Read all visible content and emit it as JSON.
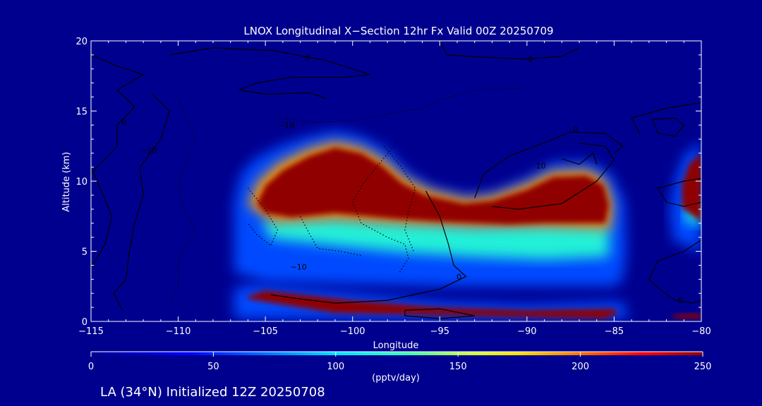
{
  "chart_data": {
    "type": "heatmap",
    "title": "LNOX Longitudinal X−Section 12hr  Fx Valid 00Z 20250709",
    "xlabel": "Longitude",
    "ylabel": "Altitude (km)",
    "xlim": [
      -115,
      -80
    ],
    "ylim": [
      0,
      20
    ],
    "xticks": [
      -115,
      -110,
      -105,
      -100,
      -95,
      -90,
      -85,
      -80
    ],
    "xtick_labels": [
      "−115",
      "−110",
      "−105",
      "−100",
      "−95",
      "−90",
      "−85",
      "−80"
    ],
    "yticks": [
      0,
      5,
      10,
      15,
      20
    ],
    "ytick_labels": [
      "0",
      "5",
      "10",
      "15",
      "20"
    ],
    "background_color": "#00008f",
    "colorbar": {
      "label": "(pptv/day)",
      "min": 0,
      "max": 250,
      "ticks": [
        0,
        50,
        100,
        150,
        200,
        250
      ],
      "tick_labels": [
        "0",
        "50",
        "100",
        "150",
        "200",
        "250"
      ],
      "colormap": "rainbow (blue → cyan → green → yellow → red → dark red)"
    },
    "filled_regions": [
      {
        "value": 60,
        "polygon": [
          [
            -106.8,
            8.5
          ],
          [
            -106.4,
            10.5
          ],
          [
            -105.5,
            11.7
          ],
          [
            -104,
            12.6
          ],
          [
            -102.5,
            13.2
          ],
          [
            -101,
            13.6
          ],
          [
            -99.5,
            13.2
          ],
          [
            -98,
            12.2
          ],
          [
            -96.8,
            10.6
          ],
          [
            -95.5,
            9.6
          ],
          [
            -93.5,
            9.0
          ],
          [
            -92,
            9.2
          ],
          [
            -90,
            10.2
          ],
          [
            -88.5,
            11.3
          ],
          [
            -86.5,
            11.4
          ],
          [
            -85.2,
            10.5
          ],
          [
            -84.4,
            8.5
          ],
          [
            -84.3,
            5
          ],
          [
            -84.5,
            3
          ],
          [
            -85,
            2.5
          ],
          [
            -95,
            2.5
          ],
          [
            -105,
            2.8
          ],
          [
            -106.8,
            3.5
          ]
        ]
      },
      {
        "value": 115,
        "polygon": [
          [
            -105.2,
            7.2
          ],
          [
            -101,
            7.4
          ],
          [
            -97,
            7.1
          ],
          [
            -93,
            6.8
          ],
          [
            -89,
            6.9
          ],
          [
            -85.3,
            6.8
          ],
          [
            -85.3,
            4.6
          ],
          [
            -89,
            4.4
          ],
          [
            -93,
            4.6
          ],
          [
            -97,
            4.9
          ],
          [
            -101,
            5.4
          ],
          [
            -104.7,
            5.9
          ]
        ]
      },
      {
        "value": 190,
        "polygon": [
          [
            -106,
            8.3
          ],
          [
            -105.4,
            10
          ],
          [
            -104.2,
            11.3
          ],
          [
            -102.5,
            12.3
          ],
          [
            -101,
            12.8
          ],
          [
            -99.5,
            12.4
          ],
          [
            -98.2,
            11.5
          ],
          [
            -97,
            10.2
          ],
          [
            -95.5,
            9.3
          ],
          [
            -93.5,
            8.7
          ],
          [
            -92,
            8.9
          ],
          [
            -90,
            9.8
          ],
          [
            -88.5,
            10.7
          ],
          [
            -86.5,
            10.8
          ],
          [
            -85.5,
            10
          ],
          [
            -85.1,
            8.4
          ],
          [
            -85.2,
            6.6
          ],
          [
            -89,
            6.8
          ],
          [
            -93,
            6.8
          ],
          [
            -97,
            7.0
          ],
          [
            -101,
            7.3
          ],
          [
            -104.5,
            7.1
          ]
        ]
      },
      {
        "value": 250,
        "polygon": [
          [
            -105.5,
            8.4
          ],
          [
            -105,
            9.7
          ],
          [
            -104,
            10.8
          ],
          [
            -102.5,
            11.8
          ],
          [
            -101,
            12.4
          ],
          [
            -99.5,
            12.0
          ],
          [
            -98.3,
            11.1
          ],
          [
            -97.2,
            9.9
          ],
          [
            -95.8,
            9.0
          ],
          [
            -93.6,
            8.4
          ],
          [
            -92,
            8.6
          ],
          [
            -90,
            9.4
          ],
          [
            -88.5,
            10.3
          ],
          [
            -86.6,
            10.4
          ],
          [
            -85.6,
            9.7
          ],
          [
            -85.3,
            8.3
          ],
          [
            -85.5,
            7.0
          ],
          [
            -89,
            7.0
          ],
          [
            -91,
            6.9
          ],
          [
            -95,
            7.1
          ],
          [
            -97.5,
            7.3
          ],
          [
            -101,
            7.7
          ],
          [
            -103.5,
            7.4
          ],
          [
            -105,
            7.7
          ]
        ]
      },
      {
        "value": 60,
        "polygon": [
          [
            -106.8,
            2.4
          ],
          [
            -105.5,
            2.6
          ],
          [
            -100,
            2.0
          ],
          [
            -95,
            1.4
          ],
          [
            -90,
            1.2
          ],
          [
            -84.5,
            1.4
          ],
          [
            -84.2,
            0.2
          ],
          [
            -106.8,
            0.2
          ]
        ]
      },
      {
        "value": 250,
        "polygon": [
          [
            -106,
            1.8
          ],
          [
            -105,
            2.2
          ],
          [
            -100,
            1.5
          ],
          [
            -95,
            1.0
          ],
          [
            -90,
            0.8
          ],
          [
            -85,
            0.9
          ],
          [
            -84.8,
            0.6
          ],
          [
            -85.5,
            0.2
          ],
          [
            -101,
            0.6
          ],
          [
            -106,
            1.6
          ]
        ]
      },
      {
        "value": 60,
        "polygon": [
          [
            -80,
            12.8
          ],
          [
            -81,
            11.8
          ],
          [
            -81.5,
            10
          ],
          [
            -81.8,
            8
          ],
          [
            -81.6,
            5.8
          ],
          [
            -80,
            5.0
          ]
        ]
      },
      {
        "value": 110,
        "polygon": [
          [
            -80,
            6.8
          ],
          [
            -80.9,
            7.1
          ],
          [
            -81,
            8
          ],
          [
            -80,
            8.5
          ]
        ]
      },
      {
        "value": 250,
        "polygon": [
          [
            -80,
            12.0
          ],
          [
            -80.7,
            11.2
          ],
          [
            -81.1,
            9.8
          ],
          [
            -81.1,
            8.1
          ],
          [
            -80,
            7.1
          ]
        ]
      },
      {
        "value": 250,
        "polygon": [
          [
            -80,
            0.6
          ],
          [
            -81.6,
            0.5
          ],
          [
            -81.6,
            0.2
          ],
          [
            -80,
            0.2
          ]
        ]
      }
    ],
    "contour_labels": [
      {
        "text": "0",
        "x": -102.6,
        "y": 18.8
      },
      {
        "text": "0",
        "x": -89.8,
        "y": 18.7
      },
      {
        "text": "0",
        "x": -113.1,
        "y": 14.2
      },
      {
        "text": "−10",
        "x": -111.7,
        "y": 12.2
      },
      {
        "text": "−10",
        "x": -103.8,
        "y": 14.0
      },
      {
        "text": "0",
        "x": -87.2,
        "y": 13.7
      },
      {
        "text": "10",
        "x": -89.2,
        "y": 11.1
      },
      {
        "text": "−10",
        "x": -103.1,
        "y": 3.9
      },
      {
        "text": "0",
        "x": -93.9,
        "y": 3.2
      },
      {
        "text": "0",
        "x": -81.2,
        "y": 1.5
      }
    ],
    "solid_contours": [
      [
        [
          -115,
          19
        ],
        [
          -113.5,
          18.2
        ],
        [
          -112,
          17.6
        ],
        [
          -113.5,
          16.5
        ],
        [
          -112.5,
          15.3
        ],
        [
          -113.5,
          14
        ],
        [
          -113.5,
          12.5
        ],
        [
          -114.5,
          11.2
        ],
        [
          -115,
          10.5
        ]
      ],
      [
        [
          -110.5,
          19
        ],
        [
          -108,
          19.5
        ],
        [
          -104.5,
          19.3
        ],
        [
          -101.5,
          18.6
        ],
        [
          -99,
          17.6
        ],
        [
          -100.5,
          17.4
        ],
        [
          -103.5,
          17.4
        ],
        [
          -105.5,
          17
        ],
        [
          -106.5,
          16.5
        ],
        [
          -105,
          16.2
        ],
        [
          -102.5,
          16.3
        ],
        [
          -101.5,
          15.9
        ]
      ],
      [
        [
          -111.5,
          16.2
        ],
        [
          -110.5,
          15
        ],
        [
          -111,
          13
        ],
        [
          -112.2,
          11
        ],
        [
          -112,
          9
        ],
        [
          -112.5,
          7
        ],
        [
          -112.8,
          5
        ],
        [
          -113,
          3
        ],
        [
          -113.7,
          2
        ],
        [
          -113.2,
          0.8
        ]
      ],
      [
        [
          -115,
          3.8
        ],
        [
          -114.2,
          5.5
        ],
        [
          -113.8,
          7.5
        ],
        [
          -114.3,
          9
        ],
        [
          -115,
          11
        ]
      ],
      [
        [
          -95,
          20
        ],
        [
          -94.6,
          19
        ],
        [
          -92,
          18.8
        ],
        [
          -90,
          18.7
        ],
        [
          -88,
          18.9
        ],
        [
          -87,
          19.5
        ]
      ],
      [
        [
          -95.8,
          9.3
        ],
        [
          -95,
          7.5
        ],
        [
          -94.5,
          5.5
        ],
        [
          -94.2,
          4
        ],
        [
          -93.5,
          3.2
        ],
        [
          -95,
          2.3
        ],
        [
          -98,
          1.5
        ],
        [
          -101,
          1.3
        ],
        [
          -103,
          1.6
        ],
        [
          -104.7,
          1.9
        ]
      ],
      [
        [
          -93,
          8.8
        ],
        [
          -92.5,
          10.5
        ],
        [
          -91,
          11.8
        ],
        [
          -89.5,
          12.5
        ],
        [
          -87.5,
          13.5
        ],
        [
          -85.5,
          13.4
        ],
        [
          -84.5,
          12.5
        ],
        [
          -85,
          12
        ]
      ],
      [
        [
          -88,
          11.6
        ],
        [
          -87,
          11.2
        ],
        [
          -86.2,
          12
        ],
        [
          -86,
          11.2
        ]
      ],
      [
        [
          -92,
          8.2
        ],
        [
          -90.5,
          8.0
        ],
        [
          -88,
          8.4
        ],
        [
          -86,
          10
        ],
        [
          -85,
          11.5
        ],
        [
          -85.5,
          12.5
        ],
        [
          -87,
          12.7
        ]
      ],
      [
        [
          -83.5,
          13.3
        ],
        [
          -84,
          14.5
        ],
        [
          -82,
          15.2
        ],
        [
          -80.5,
          15.5
        ],
        [
          -80,
          15.6
        ]
      ],
      [
        [
          -81.5,
          14.5
        ],
        [
          -81,
          14
        ],
        [
          -81.5,
          13.2
        ],
        [
          -82.5,
          13.4
        ],
        [
          -82.8,
          14.4
        ],
        [
          -81.5,
          14.5
        ]
      ],
      [
        [
          -80,
          10.2
        ],
        [
          -81,
          10
        ],
        [
          -82.5,
          9.5
        ],
        [
          -82,
          8.5
        ],
        [
          -81,
          8.2
        ],
        [
          -80,
          8.5
        ]
      ],
      [
        [
          -80,
          5.8
        ],
        [
          -81,
          5
        ],
        [
          -82.5,
          4.3
        ],
        [
          -83,
          3
        ],
        [
          -82.3,
          2.2
        ],
        [
          -81.5,
          1.5
        ],
        [
          -80.5,
          1.3
        ],
        [
          -80,
          1.5
        ]
      ],
      [
        [
          -97,
          0.8
        ],
        [
          -95,
          0.9
        ],
        [
          -93,
          0.4
        ],
        [
          -95,
          0.2
        ],
        [
          -97,
          0.4
        ],
        [
          -97,
          0.8
        ]
      ]
    ],
    "dotted_contours": [
      [
        [
          -104.5,
          14.5
        ],
        [
          -102,
          14.2
        ],
        [
          -100,
          14.3
        ],
        [
          -98,
          14.8
        ],
        [
          -96,
          15.2
        ],
        [
          -95,
          15.8
        ],
        [
          -93,
          16.5
        ],
        [
          -90.5,
          16.6
        ]
      ],
      [
        [
          -110,
          15.8
        ],
        [
          -109,
          13
        ],
        [
          -110,
          10
        ],
        [
          -109.7,
          8
        ],
        [
          -109,
          6.5
        ],
        [
          -110,
          4.5
        ],
        [
          -110,
          2.5
        ],
        [
          -110.5,
          1
        ]
      ],
      [
        [
          -106,
          9.5
        ],
        [
          -105,
          8
        ],
        [
          -104.3,
          6.5
        ],
        [
          -104.7,
          5.4
        ],
        [
          -105.5,
          6.2
        ],
        [
          -106,
          7
        ]
      ],
      [
        [
          -103,
          7.5
        ],
        [
          -102.5,
          6.3
        ],
        [
          -102,
          5.2
        ],
        [
          -100.7,
          5.0
        ],
        [
          -99.5,
          4.7
        ]
      ],
      [
        [
          -97.5,
          12.7
        ],
        [
          -98.5,
          11.2
        ],
        [
          -99.4,
          9.8
        ],
        [
          -100,
          8.5
        ],
        [
          -99.5,
          7
        ],
        [
          -98,
          6
        ],
        [
          -97,
          5.5
        ],
        [
          -96.8,
          4.5
        ],
        [
          -97.3,
          3.5
        ]
      ],
      [
        [
          -98.2,
          12.5
        ],
        [
          -97.2,
          11
        ],
        [
          -96.4,
          9.5
        ],
        [
          -96.8,
          7.8
        ],
        [
          -97,
          6.5
        ],
        [
          -96.5,
          5
        ]
      ]
    ]
  }
}
